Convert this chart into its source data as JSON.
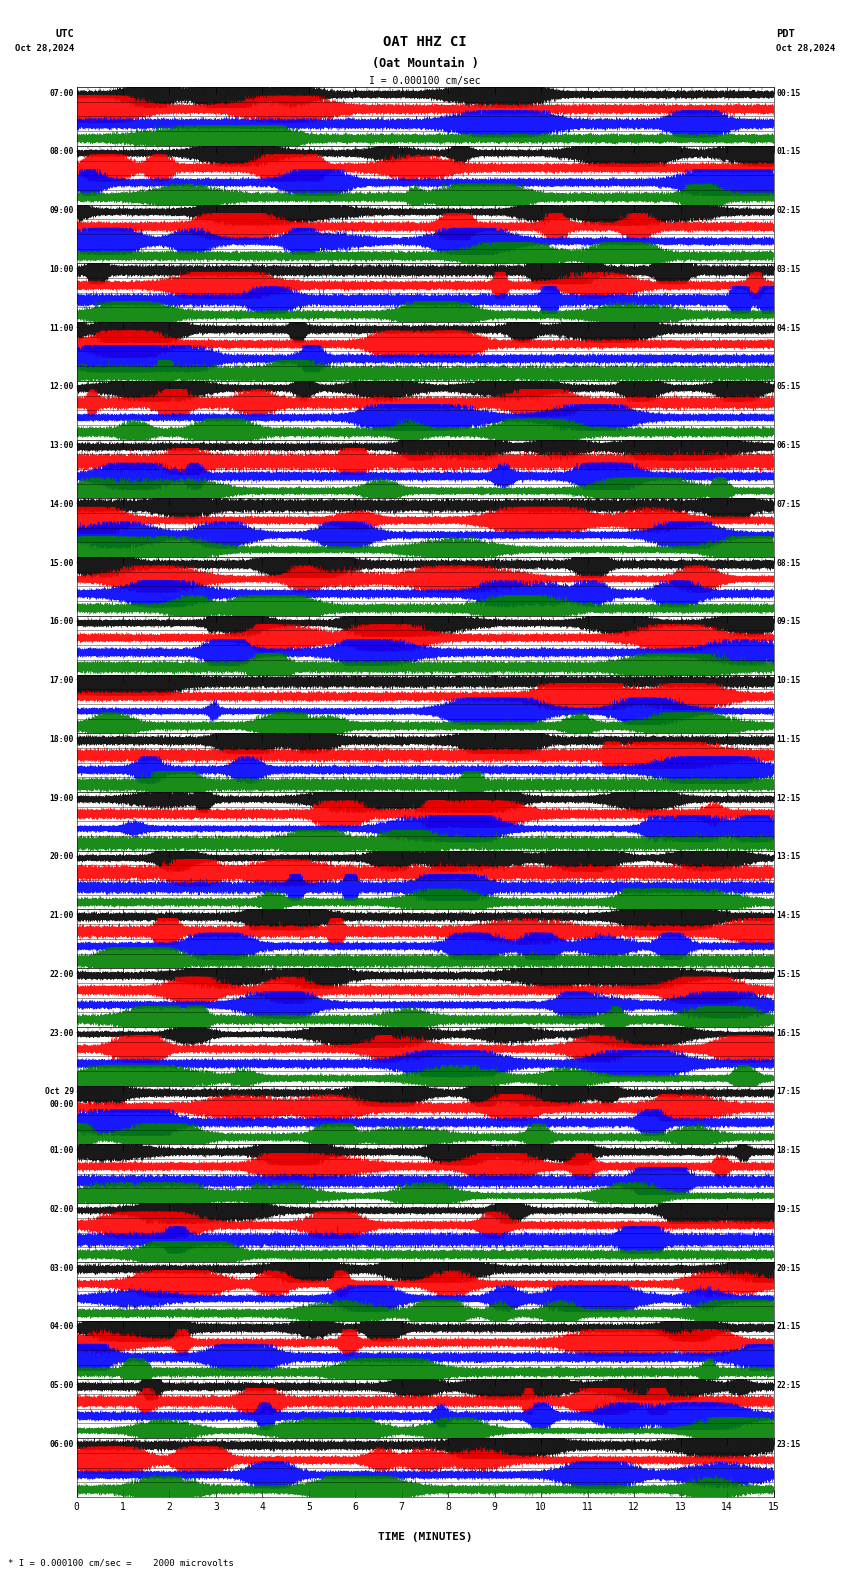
{
  "title_line1": "OAT HHZ CI",
  "title_line2": "(Oat Mountain )",
  "scale_label": "I = 0.000100 cm/sec",
  "bottom_label": "* I = 0.000100 cm/sec =    2000 microvolts",
  "xlabel": "TIME (MINUTES)",
  "utc_label": "UTC",
  "utc_date": "Oct 28,2024",
  "pdt_label": "PDT",
  "pdt_date": "Oct 28,2024",
  "left_times": [
    "07:00",
    "08:00",
    "09:00",
    "10:00",
    "11:00",
    "12:00",
    "13:00",
    "14:00",
    "15:00",
    "16:00",
    "17:00",
    "18:00",
    "19:00",
    "20:00",
    "21:00",
    "22:00",
    "23:00",
    "Oct 29\n00:00",
    "01:00",
    "02:00",
    "03:00",
    "04:00",
    "05:00",
    "06:00"
  ],
  "right_times": [
    "00:15",
    "01:15",
    "02:15",
    "03:15",
    "04:15",
    "05:15",
    "06:15",
    "07:15",
    "08:15",
    "09:15",
    "10:15",
    "11:15",
    "12:15",
    "13:15",
    "14:15",
    "15:15",
    "16:15",
    "17:15",
    "18:15",
    "19:15",
    "20:15",
    "21:15",
    "22:15",
    "23:15"
  ],
  "n_rows": 24,
  "n_minutes": 15,
  "sample_rate": 100,
  "n_sub_traces": 4,
  "colors": [
    "black",
    "red",
    "blue",
    "green"
  ],
  "bg_color": "white",
  "fig_width": 8.5,
  "fig_height": 15.84,
  "dpi": 100
}
